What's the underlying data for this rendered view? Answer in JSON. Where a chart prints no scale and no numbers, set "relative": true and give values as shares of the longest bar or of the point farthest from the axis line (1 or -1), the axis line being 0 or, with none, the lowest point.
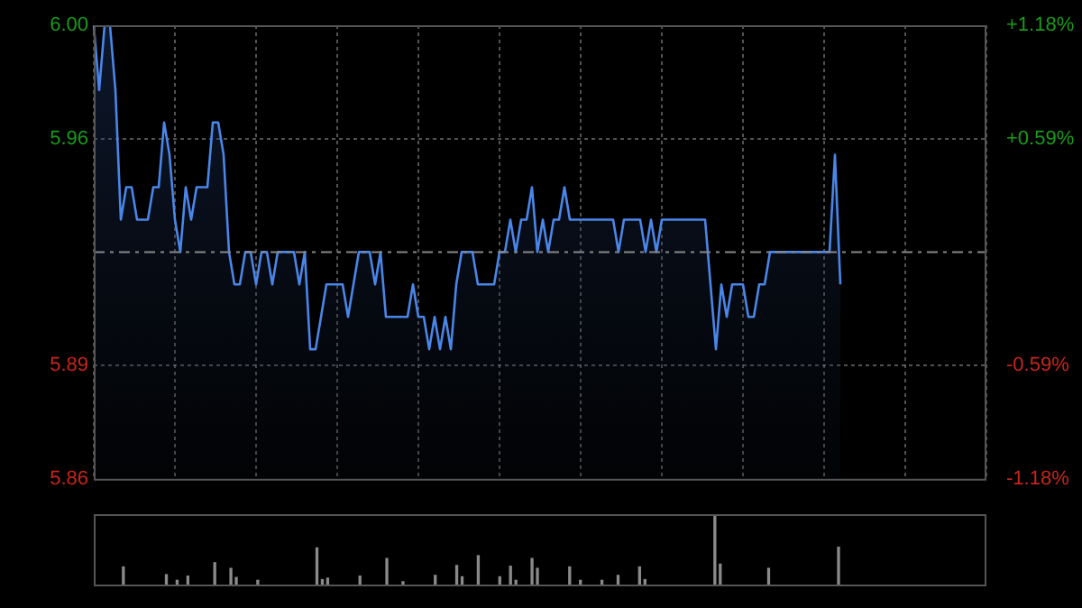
{
  "chart_data": [
    {
      "type": "area",
      "categories": [
        null,
        null,
        null,
        null,
        null,
        null,
        null,
        null,
        null,
        null,
        null,
        null,
        null,
        null,
        null,
        null,
        null,
        null,
        null,
        null,
        null,
        null,
        null,
        null,
        null,
        null,
        null,
        null,
        null,
        null,
        null,
        null,
        null,
        null,
        null,
        null,
        null,
        null,
        null,
        null,
        null,
        null,
        null,
        null,
        null,
        null,
        null,
        null,
        null,
        null,
        null,
        null,
        null,
        null,
        null,
        null,
        null,
        null,
        null,
        null,
        null,
        null,
        null,
        null,
        null,
        null,
        null,
        null,
        null,
        null,
        null,
        null,
        null,
        null,
        null,
        null,
        null,
        null,
        null,
        null,
        null,
        null,
        null,
        null,
        null,
        null,
        null,
        null,
        null,
        null,
        null,
        null,
        null,
        null,
        null,
        null,
        null,
        null,
        null,
        null,
        null,
        null,
        null,
        null,
        null,
        null,
        null,
        null,
        null,
        null,
        null,
        null,
        null,
        null,
        null,
        null,
        null,
        null,
        null,
        null,
        null,
        null,
        null,
        null,
        null,
        null,
        null,
        null,
        null,
        null,
        null,
        null,
        null,
        null,
        null,
        null,
        null,
        null,
        null,
        null,
        null,
        null,
        null,
        null,
        null,
        null,
        null,
        null,
        null,
        null,
        null,
        null,
        null,
        null,
        null,
        null,
        null,
        null,
        null,
        null,
        null,
        null,
        null,
        null,
        null,
        null
      ],
      "series": [
        {
          "color": "#4a86e8",
          "values": [
            6.0,
            5.98,
            6.0,
            6.0,
            5.98,
            5.94,
            5.95,
            5.95,
            5.94,
            5.94,
            5.94,
            5.95,
            5.95,
            5.97,
            5.96,
            5.94,
            5.93,
            5.95,
            5.94,
            5.95,
            5.95,
            5.95,
            5.97,
            5.97,
            5.96,
            5.93,
            5.92,
            5.92,
            5.93,
            5.93,
            5.92,
            5.93,
            5.93,
            5.92,
            5.93,
            5.93,
            5.93,
            5.93,
            5.92,
            5.93,
            5.9,
            5.9,
            5.91,
            5.92,
            5.92,
            5.92,
            5.92,
            5.91,
            5.92,
            5.93,
            5.93,
            5.93,
            5.92,
            5.93,
            5.91,
            5.91,
            5.91,
            5.91,
            5.91,
            5.92,
            5.91,
            5.91,
            5.9,
            5.91,
            5.9,
            5.91,
            5.9,
            5.92,
            5.93,
            5.93,
            5.93,
            5.92,
            5.92,
            5.92,
            5.92,
            5.93,
            5.93,
            5.94,
            5.93,
            5.94,
            5.94,
            5.95,
            5.93,
            5.94,
            5.93,
            5.94,
            5.94,
            5.95,
            5.94,
            5.94,
            5.94,
            5.94,
            5.94,
            5.94,
            5.94,
            5.94,
            5.94,
            5.93,
            5.94,
            5.94,
            5.94,
            5.94,
            5.93,
            5.94,
            5.93,
            5.94,
            5.94,
            5.94,
            5.94,
            5.94,
            5.94,
            5.94,
            5.94,
            5.94,
            5.92,
            5.9,
            5.92,
            5.91,
            5.92,
            5.92,
            5.92,
            5.91,
            5.91,
            5.92,
            5.92,
            5.93,
            5.93,
            5.93,
            5.93,
            5.93,
            5.93,
            5.93,
            5.93,
            5.93,
            5.93,
            5.93,
            5.93,
            5.96,
            5.92,
            null,
            null,
            null,
            null,
            null,
            null,
            null,
            null,
            null,
            null,
            null,
            null,
            null,
            null,
            null,
            null,
            null,
            null,
            null,
            null,
            null,
            null,
            null,
            null,
            null,
            null,
            null
          ]
        }
      ],
      "ylim": [
        5.86,
        6
      ],
      "yticks": [
        {
          "value": 6,
          "label": "6.00"
        },
        {
          "value": 5.965,
          "label": "5.96"
        },
        {
          "value": 5.895,
          "label": "5.89"
        },
        {
          "value": 5.86,
          "label": "5.86"
        }
      ],
      "y2lim": [
        -1.18,
        1.18
      ],
      "y2ticks": [
        {
          "value": 1.18,
          "label": "+1.18%"
        },
        {
          "value": 0.59,
          "label": "+0.59%"
        },
        {
          "value": -0.59,
          "label": "-0.59%"
        },
        {
          "value": -1.18,
          "label": "-1.18%"
        }
      ],
      "ref_lines": [
        {
          "axis": "y",
          "value": 5.93,
          "line_style": "dashed"
        }
      ],
      "grid": true,
      "legend": false,
      "marker": "none",
      "tick_labels": "y"
    },
    {
      "type": "bar",
      "relative": true,
      "color": "#8a8a8a",
      "tick_labels": false,
      "legend": false,
      "categories": [
        null,
        null,
        null,
        null,
        null,
        null,
        null,
        null,
        null,
        null,
        null,
        null,
        null,
        null,
        null,
        null,
        null,
        null,
        null,
        null,
        null,
        null,
        null,
        null,
        null,
        null,
        null,
        null,
        null,
        null,
        null,
        null,
        null,
        null,
        null,
        null,
        null,
        null,
        null,
        null,
        null,
        null,
        null,
        null,
        null,
        null,
        null,
        null,
        null,
        null,
        null,
        null,
        null,
        null,
        null,
        null,
        null,
        null,
        null,
        null,
        null,
        null,
        null,
        null,
        null,
        null,
        null,
        null,
        null,
        null,
        null,
        null,
        null,
        null,
        null,
        null,
        null,
        null,
        null,
        null,
        null,
        null,
        null,
        null,
        null,
        null,
        null,
        null,
        null,
        null,
        null,
        null,
        null,
        null,
        null,
        null,
        null,
        null,
        null,
        null,
        null,
        null,
        null,
        null,
        null,
        null,
        null,
        null,
        null,
        null,
        null,
        null,
        null,
        null,
        null,
        null,
        null,
        null,
        null,
        null,
        null,
        null,
        null,
        null,
        null,
        null,
        null,
        null,
        null,
        null,
        null,
        null,
        null,
        null,
        null,
        null,
        null,
        null,
        null,
        null,
        null,
        null,
        null,
        null,
        null,
        null,
        null,
        null,
        null,
        null,
        null,
        null,
        null,
        null,
        null,
        null,
        null,
        null,
        null,
        null,
        null,
        null,
        null,
        null,
        null,
        null
      ],
      "values": [
        null,
        null,
        null,
        null,
        null,
        0.25,
        null,
        null,
        null,
        null,
        null,
        null,
        null,
        0.14,
        null,
        0.06,
        null,
        0.12,
        null,
        null,
        null,
        null,
        0.31,
        null,
        null,
        0.23,
        0.1,
        null,
        null,
        null,
        0.06,
        null,
        null,
        null,
        null,
        null,
        null,
        null,
        null,
        null,
        null,
        0.52,
        0.07,
        0.09,
        null,
        null,
        null,
        null,
        null,
        0.12,
        null,
        null,
        null,
        null,
        0.37,
        null,
        null,
        0.04,
        null,
        null,
        null,
        null,
        null,
        0.13,
        null,
        null,
        null,
        0.27,
        0.11,
        null,
        null,
        0.41,
        null,
        null,
        null,
        0.11,
        null,
        0.26,
        0.06,
        null,
        null,
        0.37,
        0.23,
        null,
        null,
        null,
        null,
        null,
        0.25,
        null,
        0.06,
        null,
        null,
        null,
        0.06,
        null,
        null,
        0.13,
        null,
        null,
        null,
        0.25,
        0.07,
        null,
        null,
        null,
        null,
        null,
        null,
        null,
        null,
        null,
        null,
        null,
        null,
        1,
        0.29,
        null,
        null,
        null,
        null,
        null,
        null,
        null,
        null,
        0.23,
        null,
        null,
        null,
        null,
        null,
        null,
        null,
        null,
        null,
        null,
        null,
        null,
        0.53,
        null,
        null,
        null,
        null,
        null,
        null,
        null,
        null,
        null,
        null,
        null,
        null,
        null,
        null,
        null,
        null,
        null,
        null,
        null,
        null,
        null,
        null,
        null,
        null,
        null,
        null,
        null
      ]
    }
  ]
}
